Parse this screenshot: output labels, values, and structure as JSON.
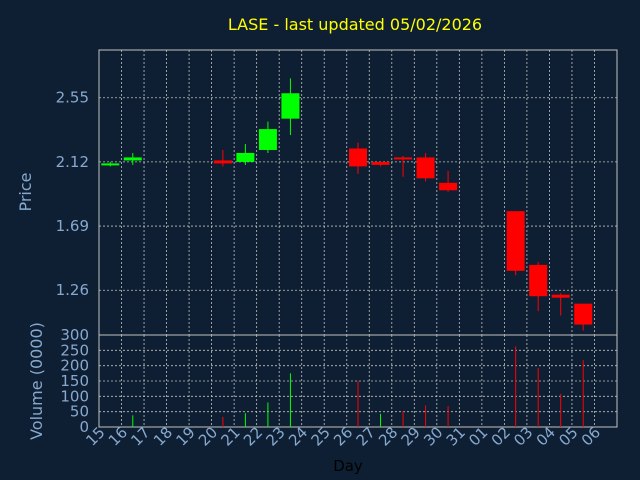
{
  "chart_data": [
    {
      "type": "candlestick",
      "title": "LASE - last updated 05/02/2026",
      "ylabel": "Price",
      "ylim": [
        0.96,
        2.87
      ],
      "y_ticks": [
        "2.55",
        "2.12",
        "1.69",
        "1.26"
      ],
      "y_tick_values": [
        2.55,
        2.12,
        1.69,
        1.26
      ],
      "grid": true,
      "colors": {
        "up": "#00ff00",
        "down": "#ff0000",
        "background": "#0f1f33",
        "grid": "#c0c0c0",
        "axis_text": "#87a9cf",
        "title": "#ffff00"
      },
      "candles": [
        {
          "day": "15",
          "open": 2.1,
          "high": 2.12,
          "low": 2.09,
          "close": 2.11
        },
        {
          "day": "16",
          "open": 2.13,
          "high": 2.18,
          "low": 2.1,
          "close": 2.15
        },
        {
          "day": "20",
          "open": 2.13,
          "high": 2.2,
          "low": 2.09,
          "close": 2.11
        },
        {
          "day": "21",
          "open": 2.12,
          "high": 2.24,
          "low": 2.1,
          "close": 2.18
        },
        {
          "day": "22",
          "open": 2.2,
          "high": 2.39,
          "low": 2.18,
          "close": 2.34
        },
        {
          "day": "23",
          "open": 2.41,
          "high": 2.68,
          "low": 2.3,
          "close": 2.58
        },
        {
          "day": "26",
          "open": 2.21,
          "high": 2.25,
          "low": 2.04,
          "close": 2.09
        },
        {
          "day": "27",
          "open": 2.12,
          "high": 2.12,
          "low": 2.09,
          "close": 2.1
        },
        {
          "day": "28",
          "open": 2.15,
          "high": 2.16,
          "low": 2.02,
          "close": 2.14
        },
        {
          "day": "29",
          "open": 2.15,
          "high": 2.18,
          "low": 1.99,
          "close": 2.01
        },
        {
          "day": "30",
          "open": 1.98,
          "high": 2.06,
          "low": 1.92,
          "close": 1.93
        },
        {
          "day": "02",
          "open": 1.79,
          "high": 1.79,
          "low": 1.36,
          "close": 1.39
        },
        {
          "day": "03",
          "open": 1.43,
          "high": 1.45,
          "low": 1.12,
          "close": 1.22
        },
        {
          "day": "04",
          "open": 1.23,
          "high": 1.24,
          "low": 1.09,
          "close": 1.21
        },
        {
          "day": "05",
          "open": 1.17,
          "high": 1.17,
          "low": 0.99,
          "close": 1.03
        }
      ]
    },
    {
      "type": "bar",
      "ylabel": "Volume (0000)",
      "xlabel": "Day",
      "ylim": [
        0,
        300
      ],
      "y_ticks": [
        "300",
        "250",
        "200",
        "150",
        "100",
        "50",
        "0"
      ],
      "y_tick_values": [
        300,
        250,
        200,
        150,
        100,
        50,
        0
      ],
      "categories": [
        "15",
        "16",
        "17",
        "18",
        "19",
        "20",
        "21",
        "22",
        "23",
        "24",
        "25",
        "26",
        "27",
        "28",
        "29",
        "30",
        "31",
        "01",
        "02",
        "03",
        "04",
        "05",
        "06"
      ],
      "volumes": [
        {
          "day": "16",
          "value": 38,
          "direction": "up"
        },
        {
          "day": "20",
          "value": 33,
          "direction": "down"
        },
        {
          "day": "21",
          "value": 45,
          "direction": "up"
        },
        {
          "day": "22",
          "value": 80,
          "direction": "up"
        },
        {
          "day": "23",
          "value": 175,
          "direction": "up"
        },
        {
          "day": "26",
          "value": 150,
          "direction": "down"
        },
        {
          "day": "27",
          "value": 43,
          "direction": "up"
        },
        {
          "day": "28",
          "value": 52,
          "direction": "down"
        },
        {
          "day": "29",
          "value": 70,
          "direction": "down"
        },
        {
          "day": "30",
          "value": 68,
          "direction": "down"
        },
        {
          "day": "02",
          "value": 263,
          "direction": "down"
        },
        {
          "day": "03",
          "value": 192,
          "direction": "down"
        },
        {
          "day": "04",
          "value": 108,
          "direction": "down"
        },
        {
          "day": "05",
          "value": 218,
          "direction": "down"
        }
      ]
    }
  ]
}
